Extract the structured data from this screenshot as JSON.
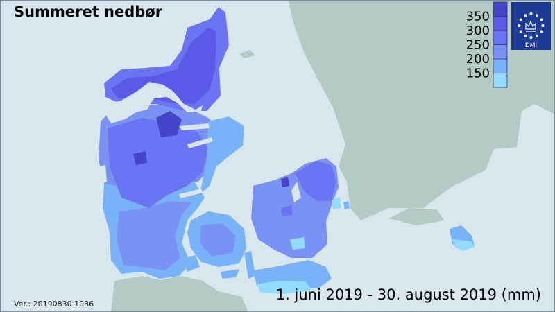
{
  "title": "Summeret nedbør",
  "period": "1. juni 2019 - 30. august 2019 (mm)",
  "version": "Ver.: 20190830 1036",
  "logo": {
    "text": "DMI",
    "background": "#1d3a96",
    "ring_color": "#ffffff"
  },
  "legend": {
    "labels": [
      "350",
      "300",
      "250",
      "200",
      "150"
    ],
    "colors": [
      "#4545c8",
      "#5a5ae6",
      "#6b74f2",
      "#7a92f4",
      "#78b2f9",
      "#94dcff"
    ]
  },
  "colors": {
    "sea": "#d9e6ee",
    "land_other": "#b3cbc4",
    "frame": "#7a8ea0"
  }
}
